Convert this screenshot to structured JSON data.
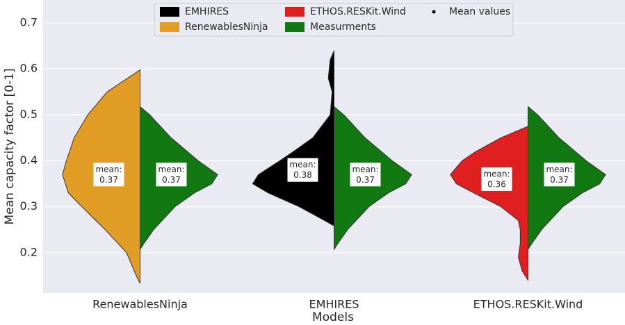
{
  "chart_data": {
    "type": "violin",
    "xlabel": "Models",
    "ylabel": "Mean capacity factor [0-1]",
    "categories": [
      "RenewablesNinja",
      "EMHIRES",
      "ETHOS.RESKit.Wind"
    ],
    "ylim": [
      0.112,
      0.75
    ],
    "yticks": [
      0.2,
      0.3,
      0.4,
      0.5,
      0.6,
      0.7
    ],
    "grid": true,
    "legend_loc": "upper center",
    "mean_label": "mean:",
    "mean_marker": {
      "name": "Mean values",
      "color": "#000000"
    },
    "series": [
      {
        "name": "EMHIRES",
        "color": "#000000",
        "side": "left",
        "values": [
          null,
          {
            "mean": 0.38,
            "y": [
              0.64,
              0.62,
              0.58,
              0.55,
              0.5,
              0.45,
              0.42,
              0.4,
              0.37,
              0.35,
              0.33,
              0.3,
              0.27,
              0.258
            ],
            "width": [
              0,
              0.02,
              0.03,
              0.01,
              0.02,
              0.11,
              0.21,
              0.28,
              0.39,
              0.42,
              0.34,
              0.18,
              0.05,
              0
            ]
          },
          null
        ]
      },
      {
        "name": "RenewablesNinja",
        "color": "#e09c24",
        "side": "left",
        "values": [
          {
            "mean": 0.37,
            "y": [
              0.598,
              0.55,
              0.5,
              0.45,
              0.4,
              0.37,
              0.33,
              0.3,
              0.25,
              0.2,
              0.15,
              0.133
            ],
            "width": [
              0,
              0.17,
              0.27,
              0.34,
              0.38,
              0.4,
              0.37,
              0.3,
              0.18,
              0.07,
              0.02,
              0
            ]
          },
          null,
          null
        ]
      },
      {
        "name": "ETHOS.RESKit.Wind",
        "color": "#e02020",
        "side": "left",
        "values": [
          null,
          null,
          {
            "mean": 0.36,
            "y": [
              0.475,
              0.45,
              0.42,
              0.4,
              0.37,
              0.35,
              0.33,
              0.3,
              0.27,
              0.25,
              0.22,
              0.19,
              0.16,
              0.14
            ],
            "width": [
              0,
              0.14,
              0.27,
              0.34,
              0.4,
              0.37,
              0.28,
              0.14,
              0.05,
              0.04,
              0.04,
              0.05,
              0.03,
              0
            ]
          }
        ]
      },
      {
        "name": "Measurments",
        "color": "#127812",
        "side": "right",
        "values": [
          {
            "mean": 0.37,
            "y": [
              0.518,
              0.5,
              0.45,
              0.4,
              0.37,
              0.35,
              0.33,
              0.3,
              0.25,
              0.22,
              0.207
            ],
            "width": [
              0,
              0.05,
              0.16,
              0.3,
              0.4,
              0.37,
              0.28,
              0.18,
              0.07,
              0.02,
              0
            ]
          },
          {
            "mean": 0.37,
            "y": [
              0.518,
              0.5,
              0.45,
              0.4,
              0.37,
              0.35,
              0.33,
              0.3,
              0.25,
              0.22,
              0.207
            ],
            "width": [
              0,
              0.05,
              0.16,
              0.3,
              0.4,
              0.37,
              0.28,
              0.18,
              0.07,
              0.02,
              0
            ]
          },
          {
            "mean": 0.37,
            "y": [
              0.518,
              0.5,
              0.45,
              0.4,
              0.37,
              0.35,
              0.33,
              0.3,
              0.25,
              0.22,
              0.207
            ],
            "width": [
              0,
              0.05,
              0.16,
              0.3,
              0.4,
              0.37,
              0.28,
              0.18,
              0.07,
              0.02,
              0
            ]
          }
        ]
      }
    ]
  }
}
